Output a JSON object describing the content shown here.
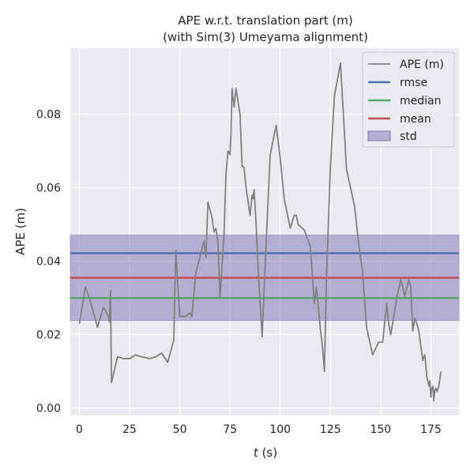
{
  "chart_data": {
    "type": "line",
    "title_lines": [
      "APE w.r.t. translation part (m)",
      "(with Sim(3) Umeyama alignment)"
    ],
    "xlabel_var": "t",
    "xlabel_unit": " (s)",
    "ylabel": "APE (m)",
    "xlim": [
      -4.5,
      189
    ],
    "ylim": [
      -0.002,
      0.098
    ],
    "xticks": [
      0,
      25,
      50,
      75,
      100,
      125,
      150,
      175
    ],
    "yticks": [
      0.0,
      0.02,
      0.04,
      0.06,
      0.08
    ],
    "ytick_labels": [
      "0.00",
      "0.02",
      "0.04",
      "0.06",
      "0.08"
    ],
    "grid": true,
    "legend_position": "top-right",
    "stats": {
      "rmse": 0.0422,
      "median": 0.03,
      "mean": 0.0355,
      "std": 0.0116
    },
    "colors": {
      "ape": "#808080",
      "rmse": "#4c72b0",
      "median": "#55a868",
      "mean": "#c44e52",
      "std": "#8172b2",
      "background": "#eaeaf2",
      "grid": "#ffffff"
    },
    "series": [
      {
        "name": "APE (m)",
        "x": [
          0,
          3,
          5,
          9,
          12,
          14,
          14.5,
          15,
          15.5,
          16,
          19,
          22,
          25,
          28,
          31,
          35,
          38,
          41,
          44,
          47,
          48,
          50,
          53,
          55,
          56,
          58,
          60,
          62,
          63,
          64,
          66,
          67,
          68,
          69,
          70,
          72,
          73,
          74,
          75,
          75.5,
          76,
          77,
          78,
          80,
          81,
          82,
          83,
          85,
          86,
          86.5,
          87,
          88,
          89,
          91,
          93,
          95,
          98,
          100,
          102,
          105,
          107,
          108,
          109,
          112,
          115,
          117,
          118,
          119,
          120,
          121,
          122,
          123,
          125,
          127,
          130,
          133,
          137,
          139,
          141,
          143,
          146,
          149,
          151,
          153,
          154,
          155,
          157,
          158,
          160,
          161,
          162,
          164,
          165,
          166,
          167,
          168,
          169,
          171,
          172,
          173,
          174,
          174.5,
          175,
          175.5,
          176,
          176.5,
          177,
          177.5,
          178,
          179,
          180
        ],
        "values": [
          0.023,
          0.033,
          0.03,
          0.022,
          0.0275,
          0.0255,
          0.025,
          0.0235,
          0.032,
          0.007,
          0.014,
          0.0135,
          0.0135,
          0.0145,
          0.014,
          0.0135,
          0.014,
          0.015,
          0.0125,
          0.0185,
          0.043,
          0.025,
          0.025,
          0.026,
          0.025,
          0.037,
          0.041,
          0.0455,
          0.041,
          0.056,
          0.052,
          0.048,
          0.049,
          0.045,
          0.03,
          0.047,
          0.064,
          0.07,
          0.069,
          0.075,
          0.087,
          0.082,
          0.087,
          0.08,
          0.066,
          0.0655,
          0.06,
          0.0525,
          0.058,
          0.057,
          0.0595,
          0.05,
          0.038,
          0.0195,
          0.045,
          0.069,
          0.077,
          0.068,
          0.057,
          0.049,
          0.0525,
          0.0525,
          0.05,
          0.0485,
          0.044,
          0.0285,
          0.033,
          0.0275,
          0.0215,
          0.017,
          0.01,
          0.035,
          0.066,
          0.085,
          0.094,
          0.065,
          0.055,
          0.045,
          0.037,
          0.022,
          0.0145,
          0.018,
          0.018,
          0.0285,
          0.023,
          0.02,
          0.0265,
          0.03,
          0.035,
          0.033,
          0.0305,
          0.035,
          0.033,
          0.021,
          0.0245,
          0.023,
          0.021,
          0.013,
          0.0145,
          0.0085,
          0.006,
          0.0075,
          0.003,
          0.0055,
          0.006,
          0.002,
          0.005,
          0.0055,
          0.0045,
          0.006,
          0.01
        ]
      },
      {
        "name": "rmse"
      },
      {
        "name": "median"
      },
      {
        "name": "mean"
      },
      {
        "name": "std"
      }
    ]
  }
}
